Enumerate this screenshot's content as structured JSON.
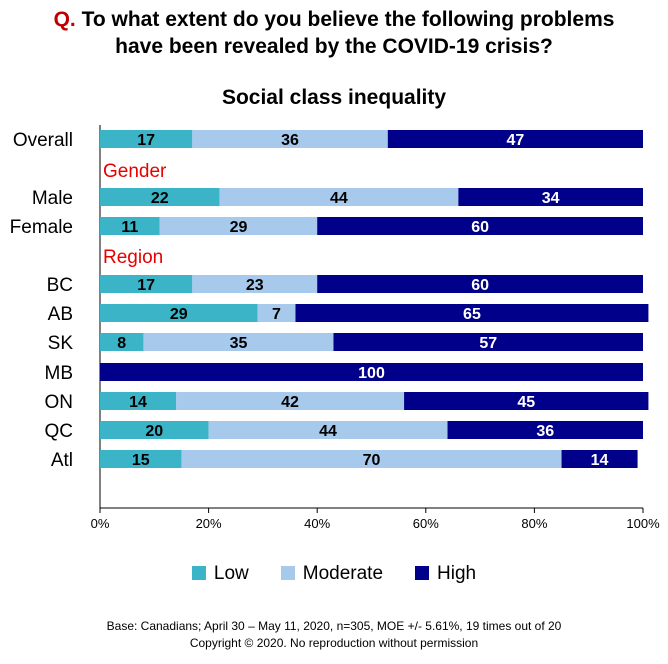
{
  "header": {
    "q_prefix": "Q.",
    "question_line1": "To what extent do you believe the following problems",
    "question_line2": "have been revealed by the COVID-19 crisis?"
  },
  "chart_data": {
    "type": "bar",
    "orientation": "horizontal",
    "stacked": true,
    "title": "Social class inequality",
    "categories": [
      "Overall",
      "Male",
      "Female",
      "BC",
      "AB",
      "SK",
      "MB",
      "ON",
      "QC",
      "Atl"
    ],
    "group_labels": [
      {
        "label": "Gender",
        "before": "Male"
      },
      {
        "label": "Region",
        "before": "BC"
      }
    ],
    "series": [
      {
        "name": "Low",
        "color": "#3bb4c8",
        "values": [
          17,
          22,
          11,
          17,
          29,
          8,
          0,
          14,
          20,
          15
        ]
      },
      {
        "name": "Moderate",
        "color": "#a6c9ec",
        "values": [
          36,
          44,
          29,
          23,
          7,
          35,
          0,
          42,
          44,
          70
        ]
      },
      {
        "name": "High",
        "color": "#00008b",
        "values": [
          47,
          34,
          60,
          60,
          65,
          57,
          100,
          45,
          36,
          14
        ]
      }
    ],
    "xlim": [
      0,
      100
    ],
    "xticks": [
      "0%",
      "20%",
      "40%",
      "60%",
      "80%",
      "100%"
    ],
    "grid": false,
    "legend_position": "bottom"
  },
  "footer": {
    "line1": "Base: Canadians; April 30 – May 11, 2020, n=305, MOE +/- 5.61%, 19 times out of 20",
    "line2": "Copyright © 2020. No reproduction without permission"
  }
}
